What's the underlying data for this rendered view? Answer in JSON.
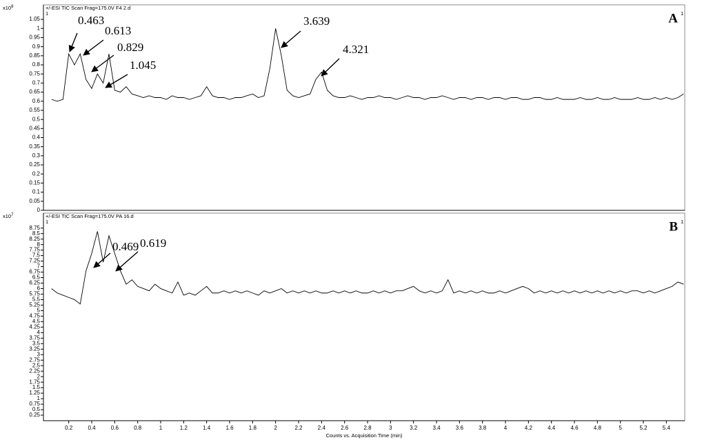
{
  "chart_data": [
    {
      "type": "line",
      "title": "+/-ESI TIC Scan Frag=175.0V F4 2.d",
      "panel_label": "A",
      "corner_label": "1",
      "y_scale_label": {
        "base": "x10",
        "exponent": "8"
      },
      "color": "#000000",
      "xlim": [
        -0.02,
        5.56
      ],
      "ylim": [
        0,
        1.13
      ],
      "yticks": [
        0,
        0.05,
        0.1,
        0.15,
        0.2,
        0.25,
        0.3,
        0.35,
        0.4,
        0.45,
        0.5,
        0.55,
        0.6,
        0.65,
        0.7,
        0.75,
        0.8,
        0.85,
        0.9,
        0.95,
        1,
        1.05
      ],
      "annotations": [
        "0.463",
        "0.613",
        "0.829",
        "1.045",
        "3.639",
        "4.321"
      ],
      "x": [
        0.05,
        0.1,
        0.15,
        0.2,
        0.25,
        0.3,
        0.35,
        0.4,
        0.45,
        0.5,
        0.55,
        0.6,
        0.65,
        0.7,
        0.75,
        0.8,
        0.85,
        0.9,
        0.95,
        1,
        1.05,
        1.1,
        1.15,
        1.2,
        1.25,
        1.3,
        1.35,
        1.4,
        1.45,
        1.5,
        1.55,
        1.6,
        1.65,
        1.7,
        1.75,
        1.8,
        1.85,
        1.9,
        1.95,
        2,
        2.05,
        2.1,
        2.15,
        2.2,
        2.25,
        2.3,
        2.35,
        2.4,
        2.45,
        2.5,
        2.55,
        2.6,
        2.65,
        2.7,
        2.75,
        2.8,
        2.85,
        2.9,
        2.95,
        3,
        3.05,
        3.1,
        3.15,
        3.2,
        3.25,
        3.3,
        3.35,
        3.4,
        3.45,
        3.5,
        3.55,
        3.6,
        3.65,
        3.7,
        3.75,
        3.8,
        3.85,
        3.9,
        3.95,
        4,
        4.05,
        4.1,
        4.15,
        4.2,
        4.25,
        4.3,
        4.35,
        4.4,
        4.45,
        4.5,
        4.55,
        4.6,
        4.65,
        4.7,
        4.75,
        4.8,
        4.85,
        4.9,
        4.95,
        5,
        5.05,
        5.1,
        5.15,
        5.2,
        5.25,
        5.3,
        5.35,
        5.4,
        5.45,
        5.5,
        5.55
      ],
      "values": [
        0.61,
        0.6,
        0.61,
        0.86,
        0.8,
        0.86,
        0.72,
        0.67,
        0.75,
        0.7,
        0.86,
        0.66,
        0.65,
        0.68,
        0.64,
        0.63,
        0.62,
        0.63,
        0.62,
        0.62,
        0.61,
        0.63,
        0.62,
        0.62,
        0.61,
        0.62,
        0.63,
        0.68,
        0.63,
        0.62,
        0.62,
        0.61,
        0.62,
        0.62,
        0.63,
        0.64,
        0.62,
        0.63,
        0.78,
        1.0,
        0.85,
        0.66,
        0.63,
        0.62,
        0.63,
        0.64,
        0.72,
        0.76,
        0.66,
        0.63,
        0.62,
        0.62,
        0.63,
        0.62,
        0.61,
        0.62,
        0.62,
        0.63,
        0.62,
        0.62,
        0.61,
        0.62,
        0.63,
        0.62,
        0.62,
        0.61,
        0.62,
        0.62,
        0.63,
        0.62,
        0.61,
        0.62,
        0.62,
        0.61,
        0.62,
        0.62,
        0.61,
        0.62,
        0.62,
        0.61,
        0.62,
        0.62,
        0.61,
        0.61,
        0.62,
        0.62,
        0.61,
        0.61,
        0.62,
        0.61,
        0.61,
        0.61,
        0.62,
        0.61,
        0.61,
        0.62,
        0.61,
        0.61,
        0.62,
        0.61,
        0.61,
        0.61,
        0.62,
        0.61,
        0.61,
        0.62,
        0.61,
        0.62,
        0.61,
        0.62,
        0.64
      ]
    },
    {
      "type": "line",
      "title": "+/-ESI TIC Scan Frag=175.0V PA 16.d",
      "panel_label": "B",
      "corner_label": "1",
      "y_scale_label": {
        "base": "x10",
        "exponent": "7"
      },
      "color": "#000000",
      "xlabel": "Counts vs. Acquisition Time (min)",
      "xlim": [
        -0.02,
        5.56
      ],
      "ylim": [
        0,
        9.43
      ],
      "xticks": [
        0.2,
        0.4,
        0.6,
        0.8,
        1,
        1.2,
        1.4,
        1.6,
        1.8,
        2,
        2.2,
        2.4,
        2.6,
        2.8,
        3,
        3.2,
        3.4,
        3.6,
        3.8,
        4,
        4.2,
        4.4,
        4.6,
        4.8,
        5,
        5.2,
        5.4
      ],
      "yticks": [
        0.25,
        0.5,
        0.75,
        1,
        1.25,
        1.5,
        1.75,
        2,
        2.25,
        2.5,
        2.75,
        3,
        3.25,
        3.5,
        3.75,
        4,
        4.25,
        4.5,
        4.75,
        5,
        5.25,
        5.5,
        5.75,
        6,
        6.25,
        6.5,
        6.75,
        7,
        7.25,
        7.5,
        7.75,
        8,
        8.25,
        8.5,
        8.75
      ],
      "annotations": [
        "0.469",
        "0.619"
      ],
      "x": [
        0.05,
        0.1,
        0.15,
        0.2,
        0.25,
        0.3,
        0.35,
        0.4,
        0.45,
        0.5,
        0.55,
        0.6,
        0.65,
        0.7,
        0.75,
        0.8,
        0.85,
        0.9,
        0.95,
        1,
        1.05,
        1.1,
        1.15,
        1.2,
        1.25,
        1.3,
        1.35,
        1.4,
        1.45,
        1.5,
        1.55,
        1.6,
        1.65,
        1.7,
        1.75,
        1.8,
        1.85,
        1.9,
        1.95,
        2,
        2.05,
        2.1,
        2.15,
        2.2,
        2.25,
        2.3,
        2.35,
        2.4,
        2.45,
        2.5,
        2.55,
        2.6,
        2.65,
        2.7,
        2.75,
        2.8,
        2.85,
        2.9,
        2.95,
        3,
        3.05,
        3.1,
        3.15,
        3.2,
        3.25,
        3.3,
        3.35,
        3.4,
        3.45,
        3.5,
        3.55,
        3.6,
        3.65,
        3.7,
        3.75,
        3.8,
        3.85,
        3.9,
        3.95,
        4,
        4.05,
        4.1,
        4.15,
        4.2,
        4.25,
        4.3,
        4.35,
        4.4,
        4.45,
        4.5,
        4.55,
        4.6,
        4.65,
        4.7,
        4.75,
        4.8,
        4.85,
        4.9,
        4.95,
        5,
        5.05,
        5.1,
        5.15,
        5.2,
        5.25,
        5.3,
        5.35,
        5.4,
        5.45,
        5.5,
        5.55
      ],
      "values": [
        6.0,
        5.8,
        5.7,
        5.6,
        5.5,
        5.3,
        6.8,
        7.6,
        8.6,
        7.2,
        8.4,
        7.6,
        6.8,
        6.2,
        6.4,
        6.1,
        6.0,
        5.9,
        6.2,
        6.0,
        5.9,
        5.8,
        6.3,
        5.7,
        5.8,
        5.7,
        5.9,
        6.1,
        5.8,
        5.8,
        5.9,
        5.8,
        5.9,
        5.8,
        5.9,
        5.8,
        5.7,
        5.9,
        5.8,
        5.9,
        6.0,
        5.8,
        5.9,
        5.8,
        5.9,
        5.8,
        5.9,
        5.8,
        5.8,
        5.9,
        5.8,
        5.9,
        5.8,
        5.9,
        5.8,
        5.8,
        5.9,
        5.8,
        5.9,
        5.8,
        5.9,
        5.9,
        6.0,
        6.1,
        5.9,
        5.8,
        5.9,
        5.8,
        5.9,
        6.4,
        5.8,
        5.9,
        5.8,
        5.9,
        5.8,
        5.9,
        5.8,
        5.8,
        5.9,
        5.8,
        5.9,
        6.0,
        6.1,
        6.0,
        5.8,
        5.9,
        5.8,
        5.9,
        5.8,
        5.9,
        5.8,
        5.9,
        5.8,
        5.9,
        5.8,
        5.9,
        5.8,
        5.9,
        5.8,
        5.9,
        5.8,
        5.9,
        5.9,
        5.8,
        5.9,
        5.8,
        5.9,
        6.0,
        6.1,
        6.3,
        6.2
      ]
    }
  ]
}
